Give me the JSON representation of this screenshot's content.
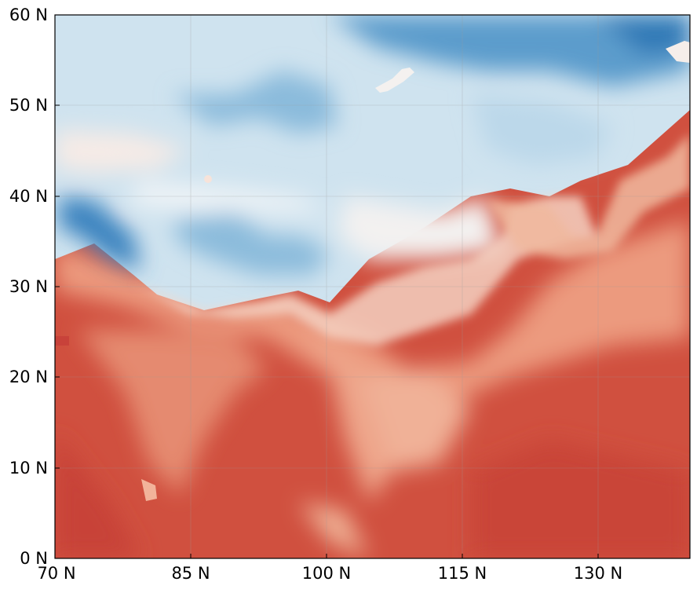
{
  "map": {
    "y_ticks": [
      "0 N",
      "10 N",
      "20 N",
      "30 N",
      "40 N",
      "50 N",
      "60 N"
    ],
    "x_ticks": [
      "70 N",
      "85 N",
      "100 N",
      "115 N",
      "130 N"
    ],
    "colors": {
      "warm_dark": "#c8423a",
      "warm_mid": "#e0705a",
      "warm_light": "#f2b39a",
      "neutral": "#f4f1ef",
      "cool_light": "#d6e7f2",
      "cool_mid": "#9ec8e2",
      "cool_dark": "#2d76b5",
      "grid": "#9a9a9a"
    }
  }
}
